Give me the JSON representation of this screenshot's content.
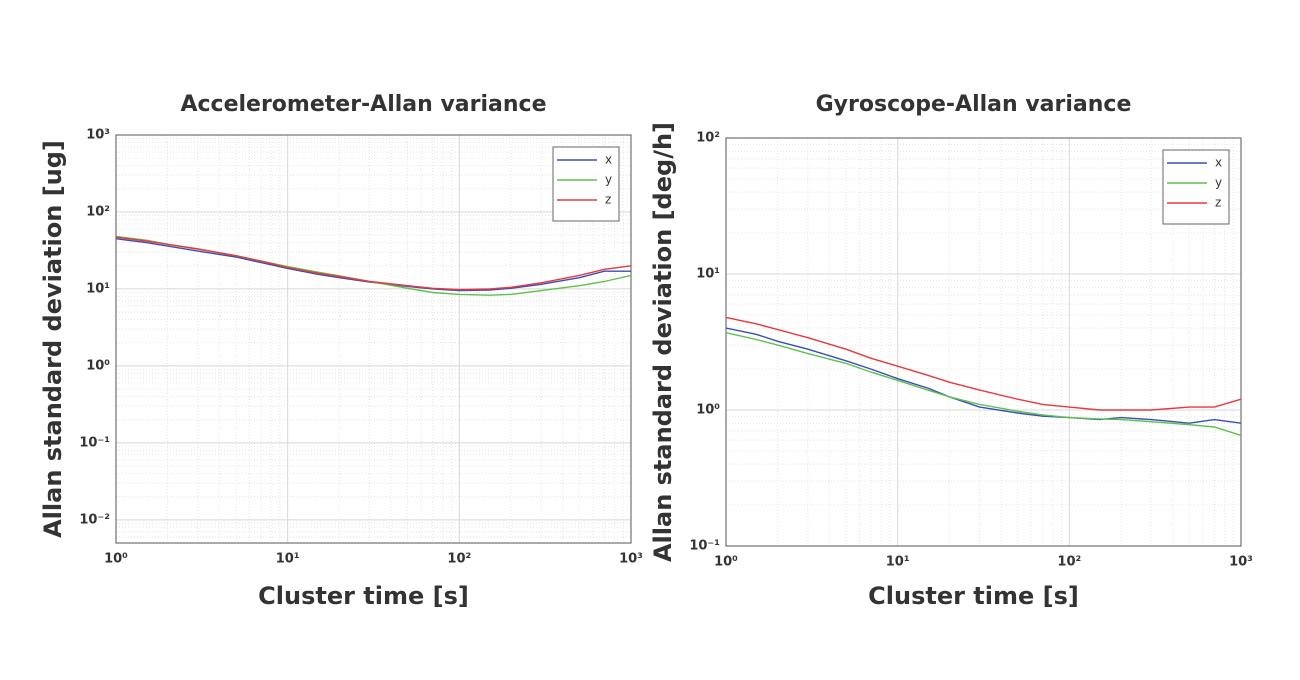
{
  "chart_data": [
    {
      "type": "line",
      "title": "Accelerometer-Allan variance",
      "xlabel": "Cluster time [s]",
      "ylabel": "Allan standard deviation [ug]",
      "log_x": true,
      "log_y": true,
      "grid": true,
      "legend": "upper right",
      "x": [
        1,
        1.5,
        2,
        3,
        5,
        7,
        10,
        15,
        20,
        30,
        50,
        70,
        100,
        150,
        200,
        300,
        500,
        700,
        1000
      ],
      "xlim": [
        1,
        1000
      ],
      "xticks": [
        {
          "value": 1,
          "label": "10⁰"
        },
        {
          "value": 10,
          "label": "10¹"
        },
        {
          "value": 100,
          "label": "10²"
        },
        {
          "value": 1000,
          "label": "10³"
        }
      ],
      "ylim": [
        0.005,
        1000
      ],
      "yticks": [
        {
          "value": 0.01,
          "label": "10⁻²"
        },
        {
          "value": 0.1,
          "label": "10⁻¹"
        },
        {
          "value": 1,
          "label": "10⁰"
        },
        {
          "value": 10,
          "label": "10¹"
        },
        {
          "value": 100,
          "label": "10²"
        },
        {
          "value": 1000,
          "label": "10³"
        }
      ],
      "series": [
        {
          "name": "x",
          "color": "#3a4fb5",
          "values": [
            45,
            40,
            36,
            31,
            26,
            22,
            18.5,
            15.5,
            14,
            12.3,
            10.8,
            10,
            9.5,
            9.7,
            10.2,
            11.5,
            14,
            17,
            17
          ]
        },
        {
          "name": "y",
          "color": "#5cc24a",
          "values": [
            48,
            43,
            38,
            33,
            27,
            23,
            19.5,
            16.5,
            14.8,
            12.5,
            10.2,
            9,
            8.5,
            8.3,
            8.5,
            9.5,
            11,
            12.5,
            15
          ]
        },
        {
          "name": "z",
          "color": "#e8383d",
          "values": [
            47,
            42,
            38,
            33,
            27,
            23,
            19,
            16,
            14.5,
            12.5,
            11,
            10.2,
            9.8,
            10,
            10.5,
            12,
            15,
            18,
            20
          ]
        }
      ]
    },
    {
      "type": "line",
      "title": "Gyroscope-Allan variance",
      "xlabel": "Cluster time [s]",
      "ylabel": "Allan standard deviation [deg/h]",
      "log_x": true,
      "log_y": true,
      "grid": true,
      "legend": "upper right",
      "x": [
        1,
        1.5,
        2,
        3,
        5,
        7,
        10,
        15,
        20,
        30,
        50,
        70,
        100,
        150,
        200,
        300,
        500,
        700,
        1000
      ],
      "xlim": [
        1,
        1000
      ],
      "xticks": [
        {
          "value": 1,
          "label": "10⁰"
        },
        {
          "value": 10,
          "label": "10¹"
        },
        {
          "value": 100,
          "label": "10²"
        },
        {
          "value": 1000,
          "label": "10³"
        }
      ],
      "ylim": [
        0.1,
        100
      ],
      "yticks": [
        {
          "value": 0.1,
          "label": "10⁻¹"
        },
        {
          "value": 1,
          "label": "10⁰"
        },
        {
          "value": 10,
          "label": "10¹"
        },
        {
          "value": 100,
          "label": "10²"
        }
      ],
      "series": [
        {
          "name": "x",
          "color": "#3a4fb5",
          "values": [
            4,
            3.6,
            3.2,
            2.8,
            2.3,
            2.0,
            1.7,
            1.45,
            1.25,
            1.05,
            0.95,
            0.9,
            0.88,
            0.85,
            0.88,
            0.85,
            0.8,
            0.85,
            0.8
          ]
        },
        {
          "name": "y",
          "color": "#5cc24a",
          "values": [
            3.7,
            3.3,
            3.0,
            2.6,
            2.2,
            1.9,
            1.65,
            1.4,
            1.25,
            1.1,
            0.98,
            0.92,
            0.88,
            0.86,
            0.85,
            0.82,
            0.78,
            0.75,
            0.65
          ]
        },
        {
          "name": "z",
          "color": "#e8383d",
          "values": [
            4.8,
            4.3,
            3.9,
            3.4,
            2.8,
            2.4,
            2.1,
            1.8,
            1.6,
            1.4,
            1.2,
            1.1,
            1.05,
            1.0,
            1.0,
            1.0,
            1.05,
            1.05,
            1.2
          ]
        }
      ]
    }
  ]
}
